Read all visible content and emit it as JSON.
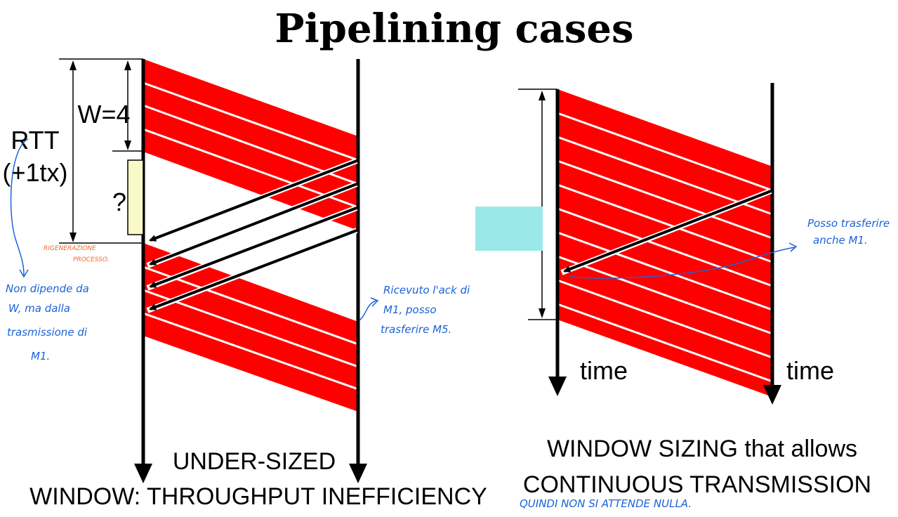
{
  "title": "Pipelining cases",
  "left": {
    "window_label": "W=4",
    "rtt_label": "RTT",
    "rtt_sub": "(+1tx)",
    "question_mark": "?",
    "caption_line1": "UNDER-SIZED",
    "caption_line2": "WINDOW: THROUGHPUT INEFFICIENCY"
  },
  "right": {
    "time_left": "time",
    "time_right": "time",
    "caption_line1": "WINDOW SIZING that allows",
    "caption_line2": "CONTINUOUS TRANSMISSION"
  },
  "annotations": {
    "orange_1": "RIGENERAZIONE",
    "orange_2": "PROCESSO.",
    "blue_left_1": "Non dipende da",
    "blue_left_2": "W, ma dalla",
    "blue_left_3": "trasmissione di",
    "blue_left_4": "M1.",
    "blue_mid_1": "Ricevuto l'ack di",
    "blue_mid_2": "M1, posso",
    "blue_mid_3": "trasferire M5.",
    "blue_right_1": "Posso trasferire",
    "blue_right_2": "anche M1.",
    "blue_bottom": "QUINDI NON SI ATTENDE NULLA."
  },
  "colors": {
    "packet": "#ff0000",
    "highlight_box": "#fafac8",
    "cyan_box": "#9be8e8",
    "handwriting_blue": "#1a63d8",
    "handwriting_orange": "#f06a2a"
  }
}
